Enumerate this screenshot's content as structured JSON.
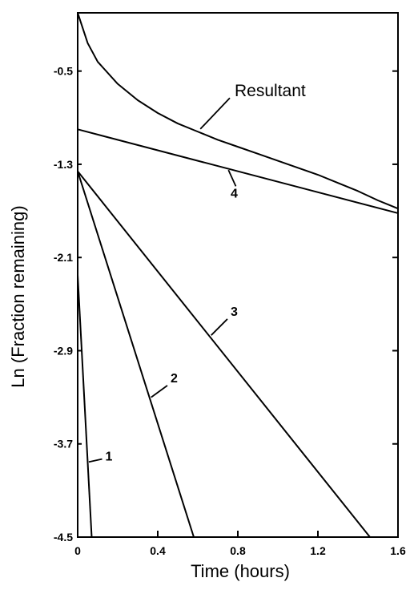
{
  "chart_data": {
    "type": "line",
    "xlabel": "Time (hours)",
    "ylabel": "Ln (Fraction remaining)",
    "xlim": [
      0,
      1.6
    ],
    "ylim": [
      -4.5,
      0.0
    ],
    "x_ticks": [
      "0",
      "0.4",
      "0.8",
      "1.2",
      "1.6"
    ],
    "y_ticks": [
      "-0.5",
      "-1.3",
      "-2.1",
      "-2.9",
      "-3.7",
      "-4.5"
    ],
    "grid": false,
    "series": [
      {
        "name": "Resultant",
        "x": [
          0,
          0.05,
          0.1,
          0.2,
          0.3,
          0.4,
          0.5,
          0.6,
          0.7,
          0.8,
          0.9,
          1.0,
          1.1,
          1.2,
          1.3,
          1.4,
          1.5,
          1.6
        ],
        "y": [
          0.0,
          -0.26,
          -0.42,
          -0.61,
          -0.75,
          -0.86,
          -0.95,
          -1.02,
          -1.09,
          -1.15,
          -1.21,
          -1.27,
          -1.33,
          -1.39,
          -1.46,
          -1.53,
          -1.61,
          -1.68
        ]
      },
      {
        "name": "4",
        "x": [
          0,
          1.6
        ],
        "y": [
          -1.0,
          -1.72
        ]
      },
      {
        "name": "3",
        "x": [
          0,
          1.46
        ],
        "y": [
          -1.36,
          -4.5
        ]
      },
      {
        "name": "2",
        "x": [
          0,
          0.58
        ],
        "y": [
          -1.36,
          -4.5
        ]
      },
      {
        "name": "1",
        "x": [
          0,
          0.07
        ],
        "y": [
          -2.25,
          -4.5
        ]
      }
    ],
    "annotations": [
      {
        "label": "Resultant",
        "series": "Resultant",
        "at_x": 0.6
      },
      {
        "label": "4",
        "series": "4",
        "at_x": 0.75
      },
      {
        "label": "3",
        "series": "3",
        "at_x": 0.66
      },
      {
        "label": "2",
        "series": "2",
        "at_x": 0.36
      },
      {
        "label": "1",
        "series": "1",
        "at_x": 0.05
      }
    ]
  }
}
